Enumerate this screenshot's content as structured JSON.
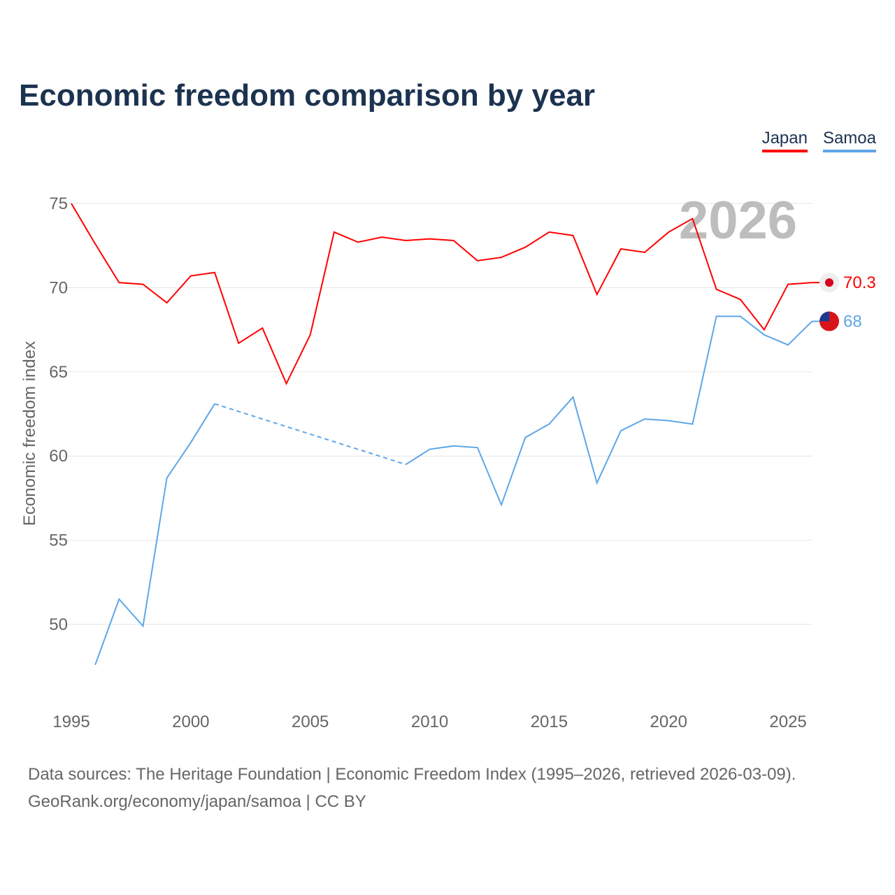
{
  "chart_data": {
    "type": "line",
    "title": "Economic freedom comparison by year",
    "xlabel": "",
    "ylabel": "Economic freedom index",
    "xlim": [
      1995,
      2026
    ],
    "ylim": [
      46,
      76
    ],
    "yticks": [
      50,
      55,
      60,
      65,
      70,
      75
    ],
    "xticks": [
      1995,
      2000,
      2005,
      2010,
      2015,
      2020,
      2025
    ],
    "grid": true,
    "legend_position": "top-right",
    "year_watermark": "2026",
    "x": [
      1995,
      1996,
      1997,
      1998,
      1999,
      2000,
      2001,
      2002,
      2003,
      2004,
      2005,
      2006,
      2007,
      2008,
      2009,
      2010,
      2011,
      2012,
      2013,
      2014,
      2015,
      2016,
      2017,
      2018,
      2019,
      2020,
      2021,
      2022,
      2023,
      2024,
      2025,
      2026
    ],
    "series": [
      {
        "name": "Japan",
        "color": "#ff0000",
        "end_label": "70.3",
        "values": [
          75.0,
          72.6,
          70.3,
          70.2,
          69.1,
          70.7,
          70.9,
          66.7,
          67.6,
          64.3,
          67.2,
          73.3,
          72.7,
          73.0,
          72.8,
          72.9,
          72.8,
          71.6,
          71.8,
          72.4,
          73.3,
          73.1,
          69.6,
          72.3,
          72.1,
          73.3,
          74.1,
          69.9,
          69.3,
          67.5,
          70.2,
          70.3
        ]
      },
      {
        "name": "Samoa",
        "color": "#5ea6e8",
        "end_label": "68",
        "values": [
          null,
          47.6,
          51.5,
          49.9,
          58.7,
          60.8,
          63.1,
          null,
          null,
          null,
          null,
          null,
          null,
          null,
          59.5,
          60.4,
          60.6,
          60.5,
          57.1,
          61.1,
          61.9,
          63.5,
          58.4,
          61.5,
          62.2,
          62.1,
          61.9,
          68.3,
          68.3,
          67.2,
          66.6,
          68.0
        ]
      }
    ]
  },
  "source": {
    "line1": "Data sources: The Heritage Foundation | Economic Freedom Index (1995–2026, retrieved 2026-03-09).",
    "line2": "GeoRank.org/economy/japan/samoa | CC BY"
  }
}
